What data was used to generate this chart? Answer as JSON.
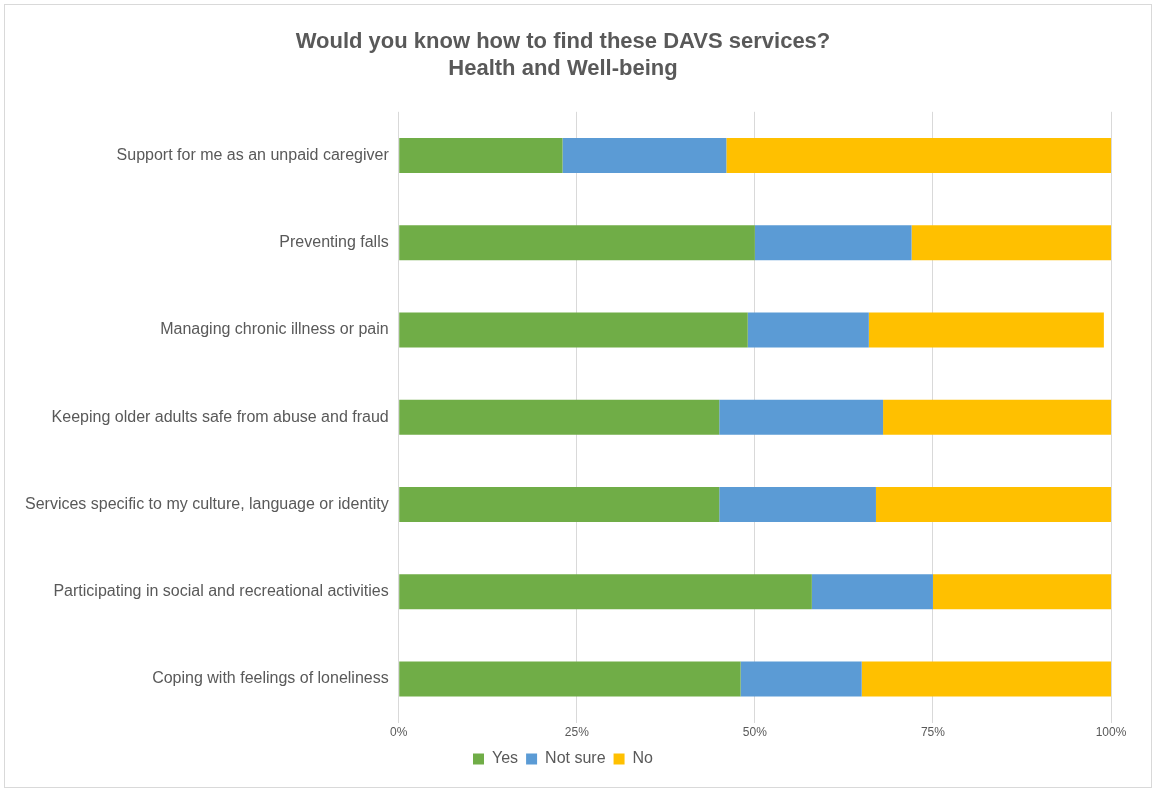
{
  "chart_data": {
    "type": "bar",
    "orientation": "horizontal",
    "stacked": true,
    "title": "Would you know how to find these DAVS services?\nHealth and Well-being",
    "categories": [
      "Support for me as an unpaid caregiver",
      "Preventing falls",
      "Managing chronic illness or pain",
      "Keeping older adults safe from abuse and fraud",
      "Services specific to my culture, language or identity",
      "Participating in social and recreational activities",
      "Coping with feelings of loneliness"
    ],
    "series": [
      {
        "name": "Yes",
        "color": "#70ad47",
        "values": [
          23,
          50,
          49,
          45,
          45,
          58,
          48
        ]
      },
      {
        "name": "Not sure",
        "color": "#5b9bd5",
        "values": [
          23,
          22,
          17,
          23,
          22,
          17,
          17
        ]
      },
      {
        "name": "No",
        "color": "#ffc000",
        "values": [
          54,
          28,
          33,
          32,
          33,
          25,
          35
        ]
      }
    ],
    "xlim": [
      0,
      100
    ],
    "xticks": [
      {
        "value": 0,
        "label": "0%"
      },
      {
        "value": 25,
        "label": "25%"
      },
      {
        "value": 50,
        "label": "50%"
      },
      {
        "value": 75,
        "label": "75%"
      },
      {
        "value": 100,
        "label": "100%"
      }
    ],
    "grid": "x",
    "legend": "bottom"
  }
}
